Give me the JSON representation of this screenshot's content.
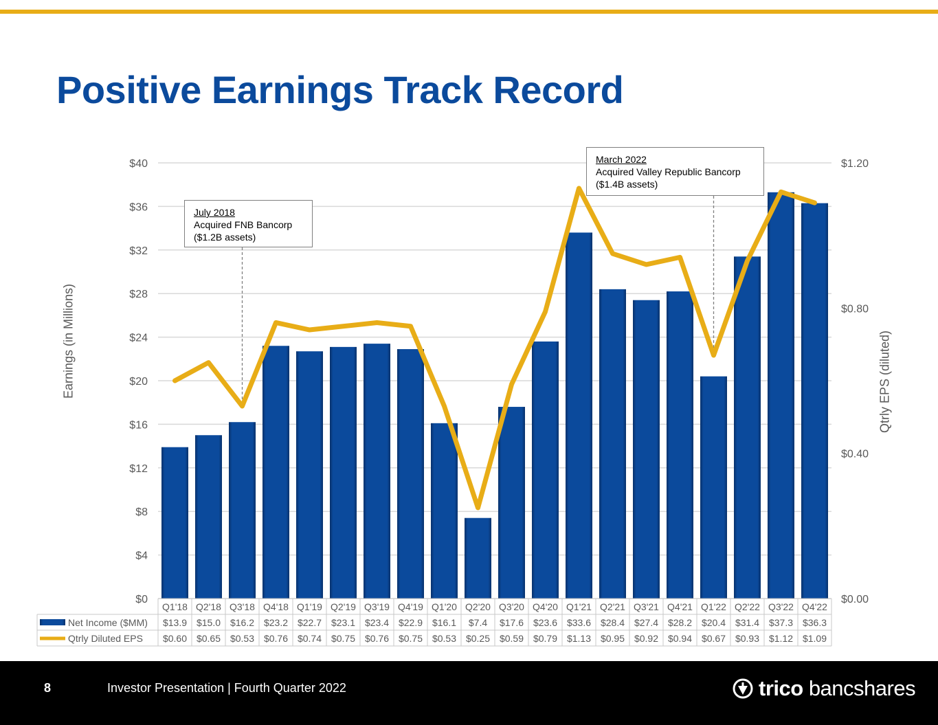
{
  "page": {
    "title": "Positive Earnings Track Record",
    "page_number": "8",
    "footer_text": "Investor Presentation | Fourth Quarter 2022",
    "logo_text_1": "trico",
    "logo_text_2": "bancshares"
  },
  "colors": {
    "brand_blue": "#0b4a9c",
    "bar_blue": "#0b4a9c",
    "accent_gold": "#e8ad17",
    "grid": "#d9d9d9",
    "axis_text": "#595959"
  },
  "callouts": [
    {
      "date": "July 2018",
      "line1": "Acquired FNB Bancorp",
      "line2": "($1.2B assets)"
    },
    {
      "date": "March 2022",
      "line1": "Acquired Valley Republic Bancorp",
      "line2": "($1.4B assets)"
    }
  ],
  "chart_data": {
    "type": "bar",
    "title": "",
    "categories": [
      "Q1'18",
      "Q2'18",
      "Q3'18",
      "Q4'18",
      "Q1'19",
      "Q2'19",
      "Q3'19",
      "Q4'19",
      "Q1'20",
      "Q2'20",
      "Q3'20",
      "Q4'20",
      "Q1'21",
      "Q2'21",
      "Q3'21",
      "Q4'21",
      "Q1'22",
      "Q2'22",
      "Q3'22",
      "Q4'22"
    ],
    "series": [
      {
        "name": "Net Income ($MM)",
        "type": "bar",
        "axis": "left",
        "values": [
          13.9,
          15.0,
          16.2,
          23.2,
          22.7,
          23.1,
          23.4,
          22.9,
          16.1,
          7.4,
          17.6,
          23.6,
          33.6,
          28.4,
          27.4,
          28.2,
          20.4,
          31.4,
          37.3,
          36.3
        ],
        "labels": [
          "$13.9",
          "$15.0",
          "$16.2",
          "$23.2",
          "$22.7",
          "$23.1",
          "$23.4",
          "$22.9",
          "$16.1",
          "$7.4",
          "$17.6",
          "$23.6",
          "$33.6",
          "$28.4",
          "$27.4",
          "$28.2",
          "$20.4",
          "$31.4",
          "$37.3",
          "$36.3"
        ]
      },
      {
        "name": "Qtrly Diluted EPS",
        "type": "line",
        "axis": "right",
        "values": [
          0.6,
          0.65,
          0.53,
          0.76,
          0.74,
          0.75,
          0.76,
          0.75,
          0.53,
          0.25,
          0.59,
          0.79,
          1.13,
          0.95,
          0.92,
          0.94,
          0.67,
          0.93,
          1.12,
          1.09
        ],
        "labels": [
          "$0.60",
          "$0.65",
          "$0.53",
          "$0.76",
          "$0.74",
          "$0.75",
          "$0.76",
          "$0.75",
          "$0.53",
          "$0.25",
          "$0.59",
          "$0.79",
          "$1.13",
          "$0.95",
          "$0.92",
          "$0.94",
          "$0.67",
          "$0.93",
          "$1.12",
          "$1.09"
        ]
      }
    ],
    "ylabel": "Earnings (in Millions)",
    "ylim": [
      0,
      40
    ],
    "yticks": [
      "$0",
      "$4",
      "$8",
      "$12",
      "$16",
      "$20",
      "$24",
      "$28",
      "$32",
      "$36",
      "$40"
    ],
    "y2label": "Qtrly EPS (diluted)",
    "y2lim": [
      0,
      1.2
    ],
    "y2ticks": [
      "$0.00",
      "$0.40",
      "$0.80",
      "$1.20"
    ],
    "grid": true,
    "legend": "data-table-below",
    "annotation_quarters": [
      "Q3'18",
      "Q1'22"
    ]
  }
}
